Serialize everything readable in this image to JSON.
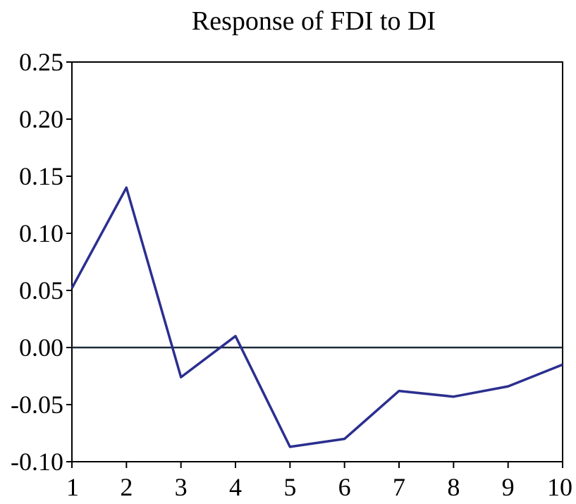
{
  "chart_data": {
    "type": "line",
    "title": "Response of FDI to DI",
    "xlabel": "",
    "ylabel": "",
    "x": [
      1,
      2,
      3,
      4,
      5,
      6,
      7,
      8,
      9,
      10
    ],
    "series": [
      {
        "values": [
          0.052,
          0.14,
          -0.026,
          0.01,
          -0.087,
          -0.08,
          -0.038,
          -0.043,
          -0.034,
          -0.015
        ]
      }
    ],
    "xlim": [
      1,
      10
    ],
    "ylim": [
      -0.1,
      0.25
    ],
    "x_ticks": [
      "1",
      "2",
      "3",
      "4",
      "5",
      "6",
      "7",
      "8",
      "9",
      "10"
    ],
    "y_ticks": [
      "0.25",
      "0.20",
      "0.15",
      "0.10",
      "0.05",
      "0.00",
      "-0.05",
      "-0.10"
    ],
    "y_tick_values": [
      0.25,
      0.2,
      0.15,
      0.1,
      0.05,
      0.0,
      -0.05,
      -0.1
    ],
    "zero_line": true,
    "grid": false,
    "colors": {
      "series": "#2b2f8f",
      "zero_line": "#1a2a3a",
      "axes": "#000000"
    }
  }
}
